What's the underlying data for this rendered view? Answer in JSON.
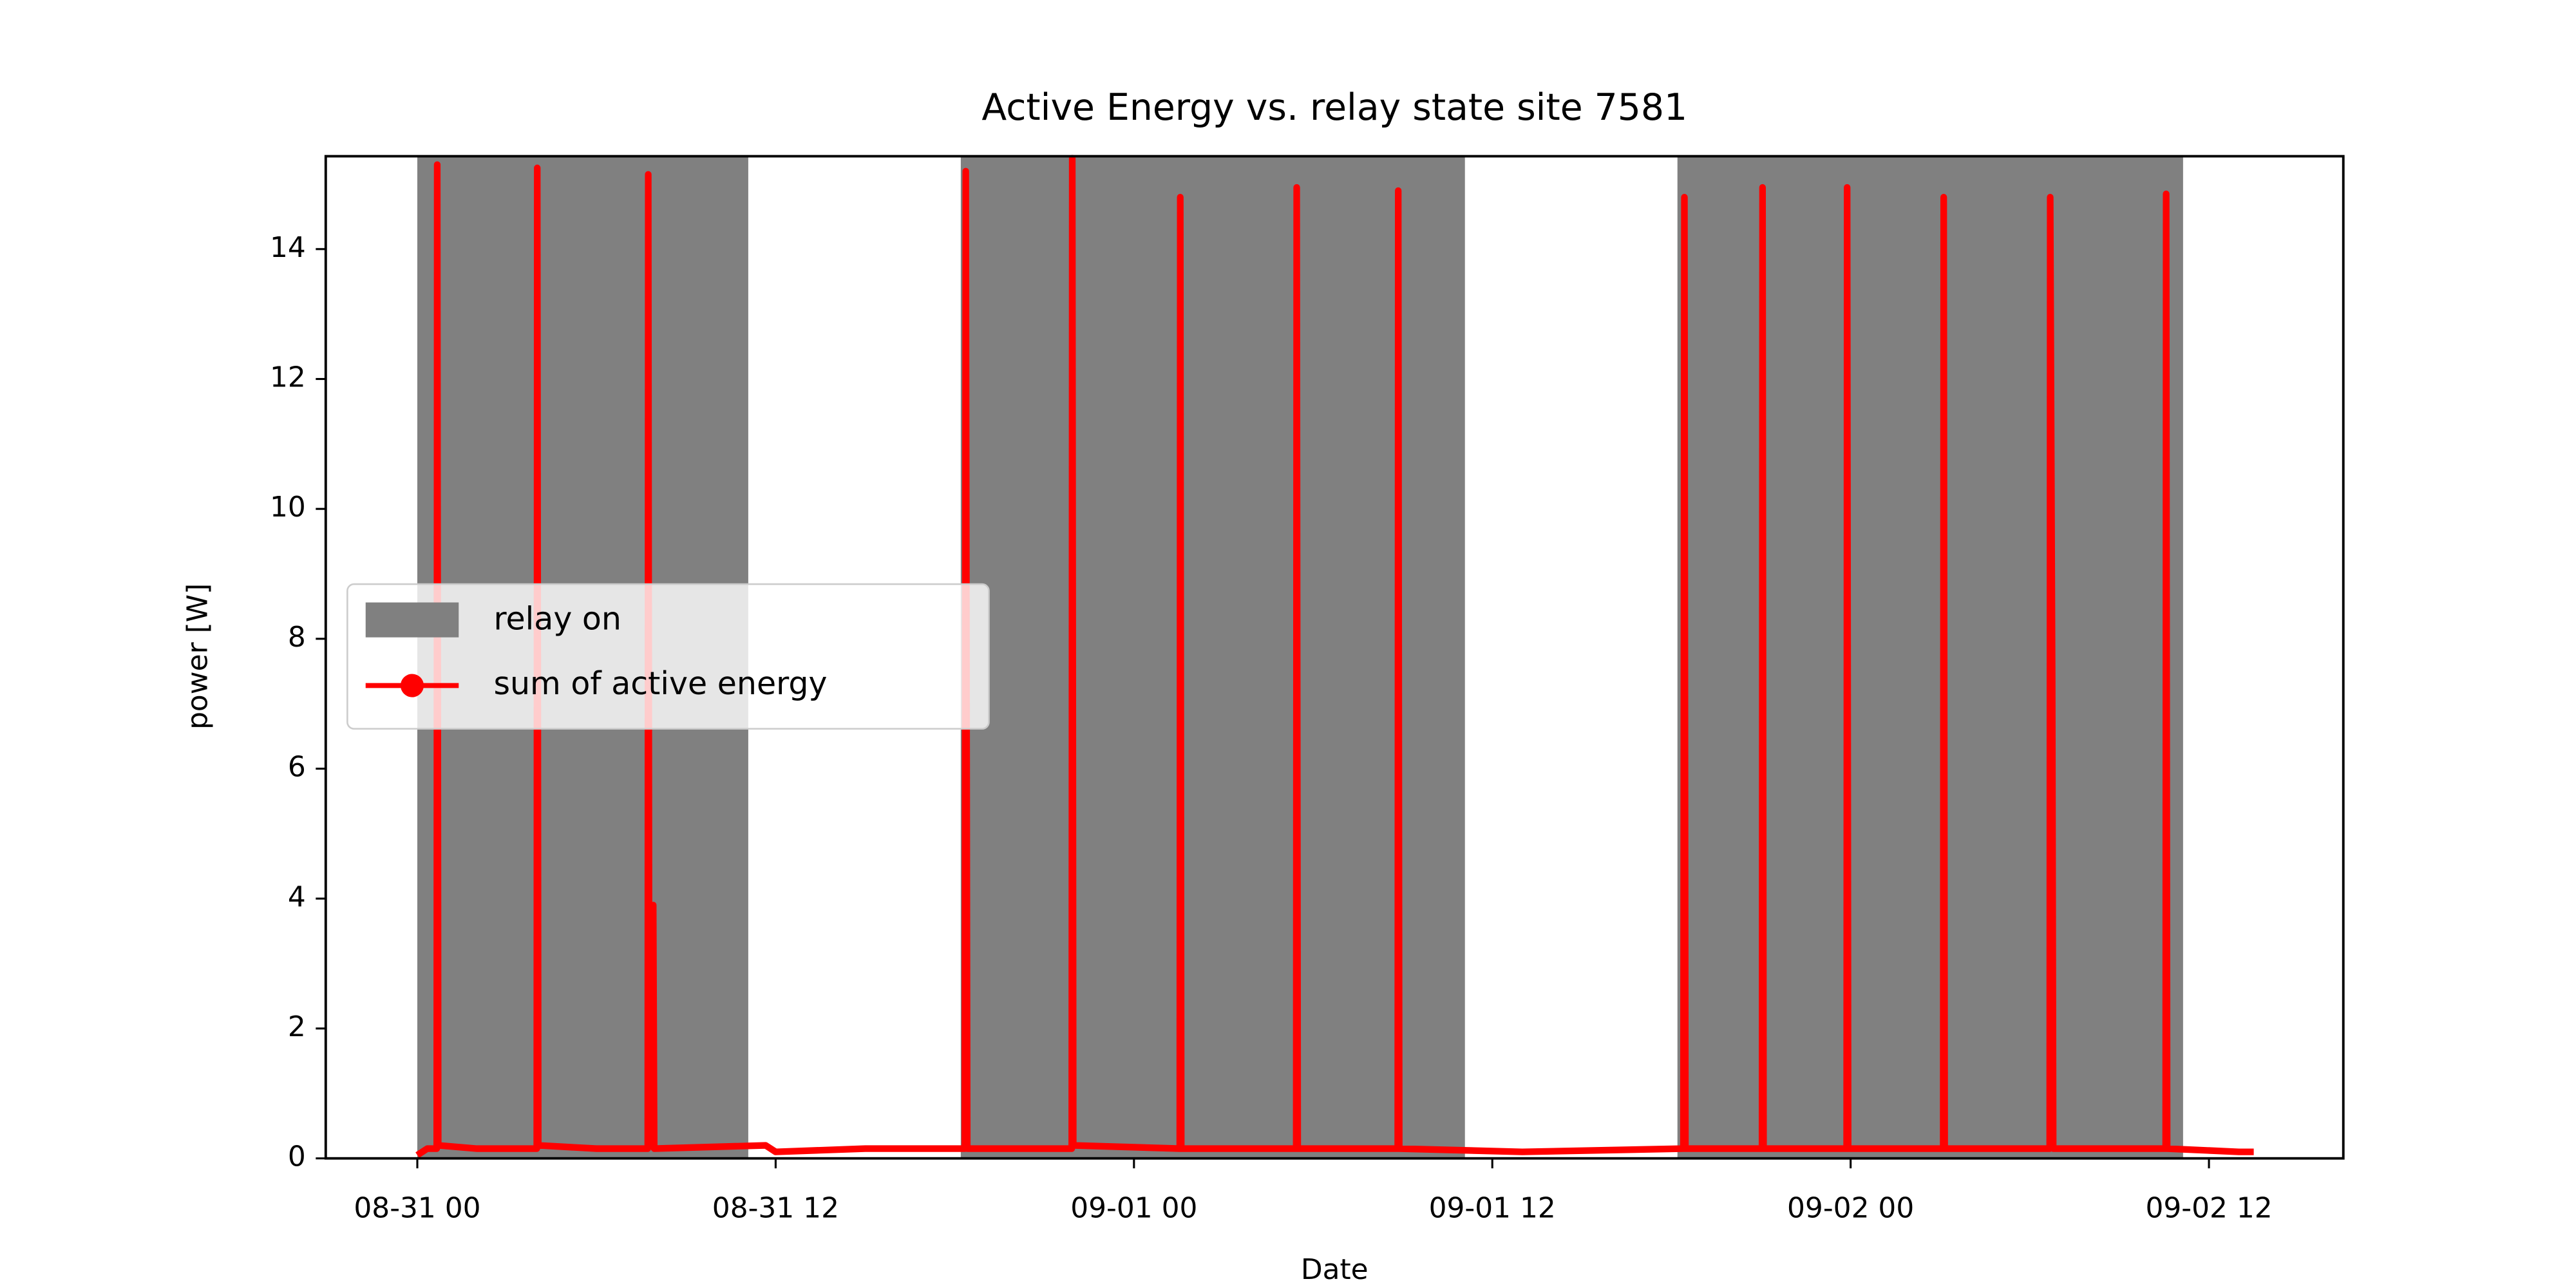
{
  "chart_data": {
    "type": "line",
    "title": "Active Energy vs. relay state site 7581",
    "xlabel": "Date",
    "ylabel": "power [W]",
    "xlim": [
      "08-30 20:56",
      "09-02 16:30"
    ],
    "ylim": [
      0,
      15.43
    ],
    "xticks": [
      {
        "value": "08-31 00:00",
        "label": "08-31 00"
      },
      {
        "value": "08-31 12:00",
        "label": "08-31 12"
      },
      {
        "value": "09-01 00:00",
        "label": "09-01 00"
      },
      {
        "value": "09-01 12:00",
        "label": "09-01 12"
      },
      {
        "value": "09-02 00:00",
        "label": "09-02 00"
      },
      {
        "value": "09-02 12:00",
        "label": "09-02 12"
      }
    ],
    "yticks": [
      0,
      2,
      4,
      6,
      8,
      10,
      12,
      14
    ],
    "legend_loc": "center left",
    "relay": {
      "name": "relay on",
      "color": "#808080",
      "spans": [
        [
          "08-31 00:00",
          "08-31 11:05"
        ],
        [
          "08-31 18:12",
          "09-01 11:05"
        ],
        [
          "09-01 18:12",
          "09-02 11:08"
        ]
      ]
    },
    "series": [
      {
        "name": "sum of active energy",
        "color": "#ff0000",
        "x": [
          "08-31 00:00",
          "08-31 00:20",
          "08-31 00:39",
          "08-31 00:40",
          "08-31 00:42",
          "08-31 02:00",
          "08-31 04:00",
          "08-31 04:01",
          "08-31 04:03",
          "08-31 06:00",
          "08-31 07:43",
          "08-31 07:44",
          "08-31 07:46",
          "08-31 07:54",
          "08-31 07:56",
          "08-31 11:40",
          "08-31 12:00",
          "08-31 15:00",
          "08-31 18:20",
          "08-31 18:22",
          "08-31 18:25",
          "08-31 21:55",
          "08-31 21:56",
          "08-31 21:58",
          "09-01 01:32",
          "09-01 01:33",
          "09-01 01:35",
          "09-01 05:26",
          "09-01 05:27",
          "09-01 05:29",
          "09-01 08:50",
          "09-01 08:51",
          "09-01 08:53",
          "09-01 13:00",
          "09-01 18:24",
          "09-01 18:26",
          "09-01 18:28",
          "09-01 21:02",
          "09-01 21:03",
          "09-01 21:05",
          "09-01 23:52",
          "09-01 23:53",
          "09-01 23:55",
          "09-02 03:06",
          "09-02 03:07",
          "09-02 03:09",
          "09-02 06:40",
          "09-02 06:41",
          "09-02 06:45",
          "09-02 06:47",
          "09-02 10:33",
          "09-02 10:34",
          "09-02 10:36",
          "09-02 13:00",
          "09-02 13:30"
        ],
        "values": [
          0.05,
          0.15,
          0.15,
          15.3,
          0.2,
          0.15,
          0.15,
          15.25,
          0.2,
          0.15,
          0.15,
          15.15,
          0.2,
          3.9,
          0.15,
          0.2,
          0.1,
          0.15,
          0.15,
          15.2,
          0.15,
          0.15,
          15.4,
          0.2,
          0.15,
          14.8,
          0.15,
          0.15,
          14.95,
          0.15,
          0.15,
          14.9,
          0.15,
          0.1,
          0.15,
          14.8,
          0.15,
          0.15,
          14.95,
          0.15,
          0.15,
          14.95,
          0.15,
          0.15,
          14.8,
          0.15,
          0.15,
          14.8,
          7.4,
          0.15,
          0.15,
          14.85,
          0.15,
          0.1,
          0.1
        ]
      }
    ]
  }
}
